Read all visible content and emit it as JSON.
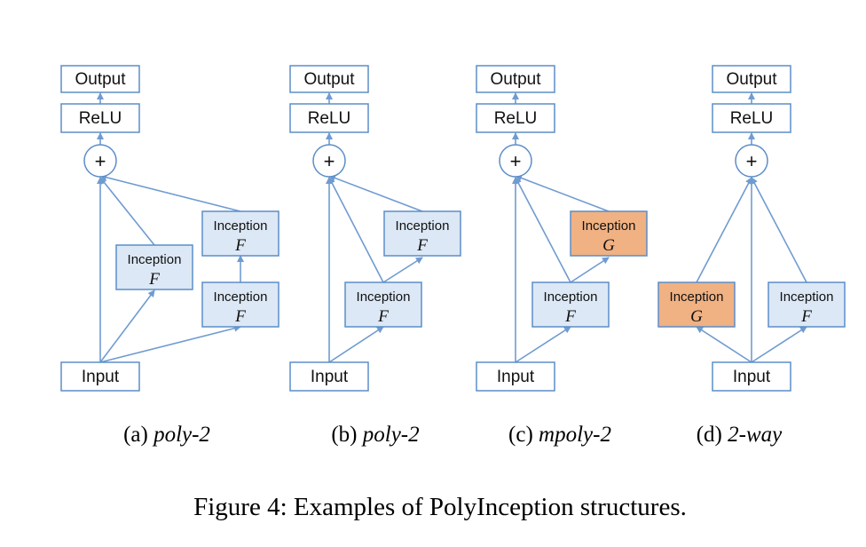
{
  "colors": {
    "edge": "#6f9bd1",
    "box_stroke": "#5b8dc9",
    "inception_f_fill": "#dce8f5",
    "inception_g_fill": "#f0b183",
    "plain_fill": "#ffffff"
  },
  "labels": {
    "output": "Output",
    "relu": "ReLU",
    "plus": "+",
    "input": "Input",
    "inception": "Inception"
  },
  "panels": [
    {
      "id": "a",
      "caption_letter": "(a)",
      "caption_name": "poly-2",
      "blocks": [
        {
          "id": "f1",
          "fn": "F",
          "kind": "F"
        },
        {
          "id": "f2",
          "fn": "F",
          "kind": "F"
        },
        {
          "id": "f3",
          "fn": "F",
          "kind": "F"
        }
      ]
    },
    {
      "id": "b",
      "caption_letter": "(b)",
      "caption_name": "poly-2",
      "blocks": [
        {
          "id": "f1",
          "fn": "F",
          "kind": "F"
        },
        {
          "id": "f2",
          "fn": "F",
          "kind": "F"
        }
      ]
    },
    {
      "id": "c",
      "caption_letter": "(c)",
      "caption_name": "mpoly-2",
      "blocks": [
        {
          "id": "f1",
          "fn": "F",
          "kind": "F"
        },
        {
          "id": "g1",
          "fn": "G",
          "kind": "G"
        }
      ]
    },
    {
      "id": "d",
      "caption_letter": "(d)",
      "caption_name": "2-way",
      "blocks": [
        {
          "id": "g1",
          "fn": "G",
          "kind": "G"
        },
        {
          "id": "f1",
          "fn": "F",
          "kind": "F"
        }
      ]
    }
  ],
  "figure_caption": "Figure 4: Examples of PolyInception structures."
}
